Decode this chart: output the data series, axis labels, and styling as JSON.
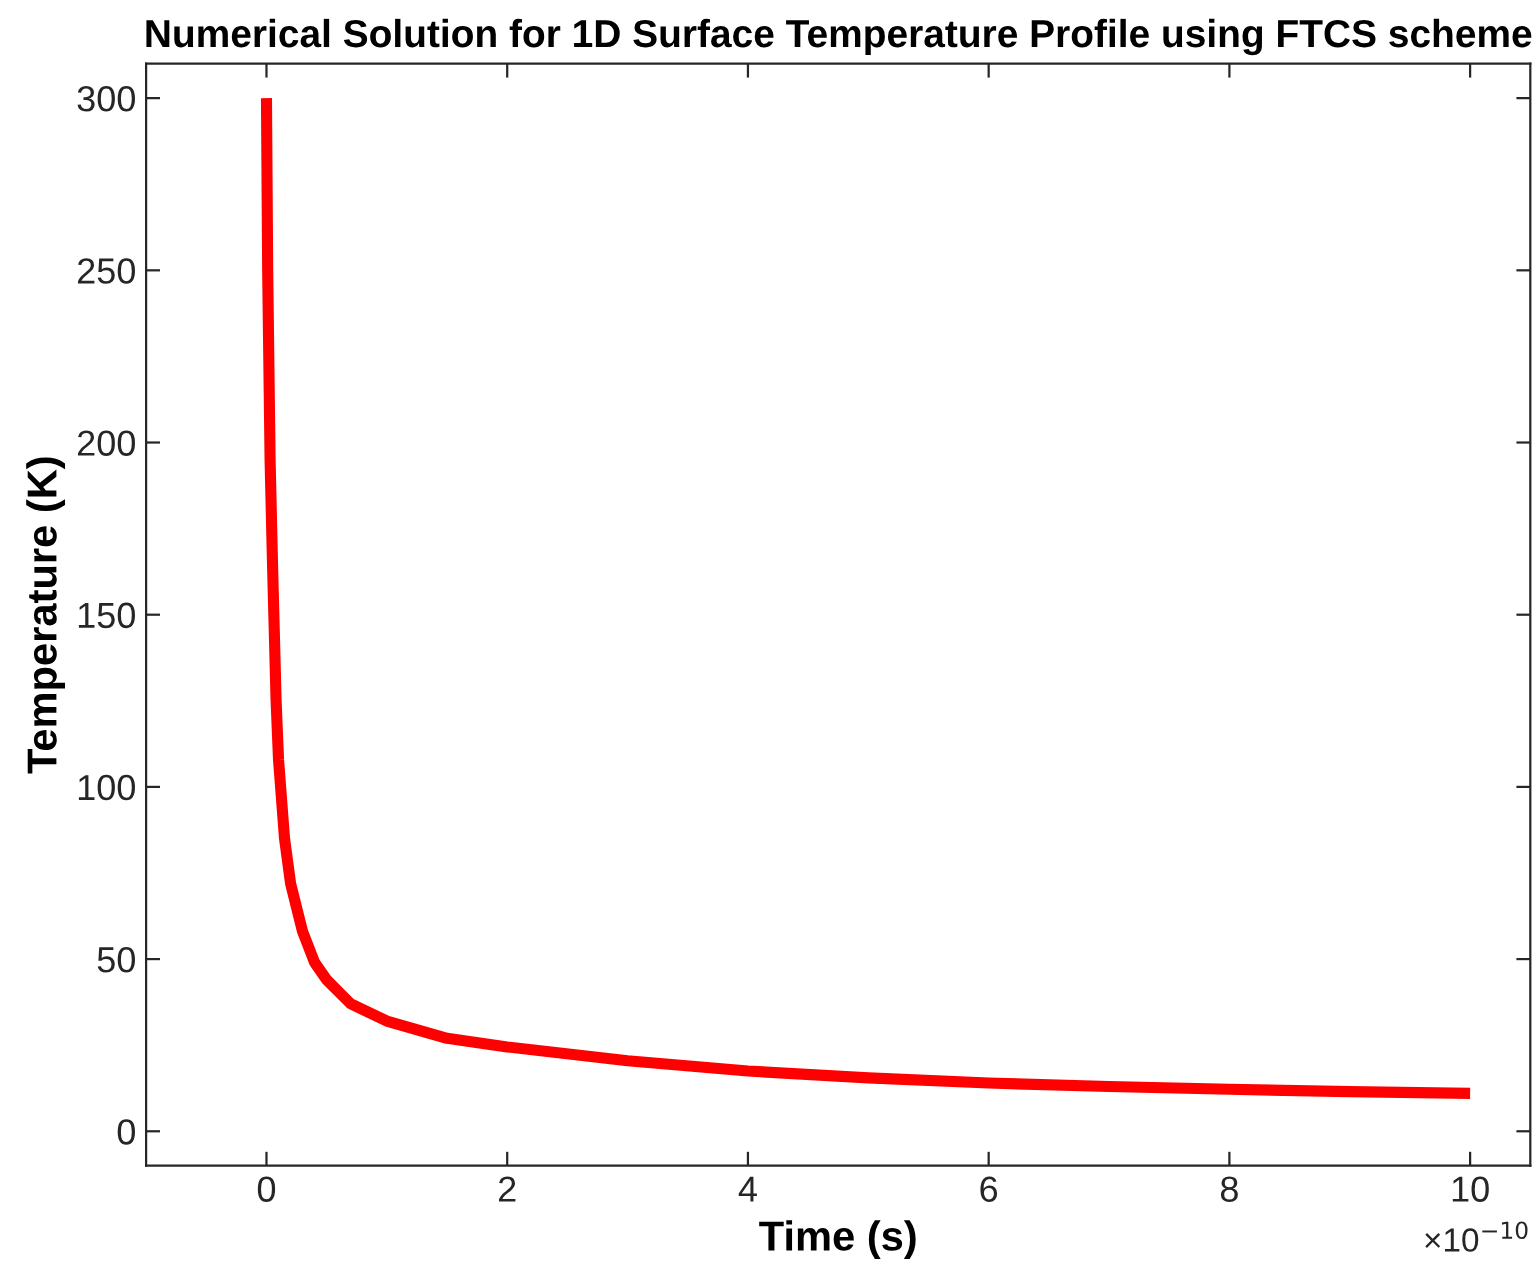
{
  "chart_data": {
    "type": "line",
    "title": "Numerical Solution for 1D Surface Temperature Profile using FTCS scheme",
    "xlabel": "Time (s)",
    "ylabel": "Temperature (K)",
    "annotations": [
      "×10$^{−10}$"
    ],
    "x": [
      0,
      0.01,
      0.03,
      0.05,
      0.08,
      0.1,
      0.15,
      0.2,
      0.3,
      0.4,
      0.5,
      0.7,
      1,
      1.5,
      2,
      3,
      4,
      5,
      6,
      7,
      8,
      9,
      10
    ],
    "series": [
      {
        "color": "#ff0000",
        "values": [
          300,
          250,
          195,
          165,
          125,
          108,
          85,
          72,
          58,
          49,
          44,
          37,
          32,
          27,
          24.5,
          20.5,
          17.5,
          15.5,
          14,
          13,
          12.2,
          11.5,
          11
        ]
      }
    ],
    "xlim": [
      -1,
      10.5
    ],
    "xticks": [
      0,
      2,
      4,
      6,
      8,
      10
    ],
    "ylim": [
      -10,
      310
    ],
    "yticks": [
      0,
      50,
      100,
      150,
      200,
      250,
      300
    ],
    "grid": false,
    "legend": false,
    "line_style": "solid"
  }
}
